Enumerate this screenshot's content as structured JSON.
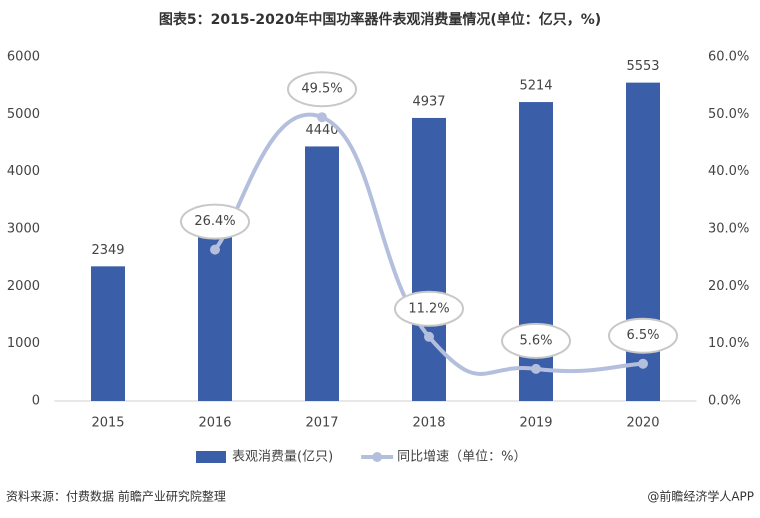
{
  "chart_data": {
    "type": "bar",
    "title": "图表5：2015-2020年中国功率器件表观消费量情况(单位：亿只，%)",
    "categories": [
      "2015",
      "2016",
      "2017",
      "2018",
      "2019",
      "2020"
    ],
    "series": [
      {
        "name": "表观消费量(亿只)",
        "type": "bar",
        "color": "#3b5ea8",
        "values": [
          2349,
          2970,
          4440,
          4937,
          5214,
          5553
        ]
      },
      {
        "name": "同比增速（单位：%）",
        "type": "line",
        "axis": "y2",
        "color": "#b4bfdd",
        "values": [
          null,
          26.4,
          49.5,
          11.2,
          5.6,
          6.5
        ],
        "value_labels": [
          null,
          "26.4%",
          "49.5%",
          "11.2%",
          "5.6%",
          "6.5%"
        ]
      }
    ],
    "ylim": [
      0,
      6000
    ],
    "yticks": [
      0,
      1000,
      2000,
      3000,
      4000,
      5000,
      6000
    ],
    "y2lim": [
      0,
      60
    ],
    "y2ticks": [
      {
        "value": 0,
        "label": "0.0%"
      },
      {
        "value": 10,
        "label": "10.0%"
      },
      {
        "value": 20,
        "label": "20.0%"
      },
      {
        "value": 30,
        "label": "30.0%"
      },
      {
        "value": 40,
        "label": "40.0%"
      },
      {
        "value": 50,
        "label": "50.0%"
      },
      {
        "value": 60,
        "label": "60.0%"
      }
    ],
    "legend": "bottom",
    "source": "资料来源：付费数据 前瞻产业研究院整理",
    "credit": "@前瞻经济学人APP"
  }
}
